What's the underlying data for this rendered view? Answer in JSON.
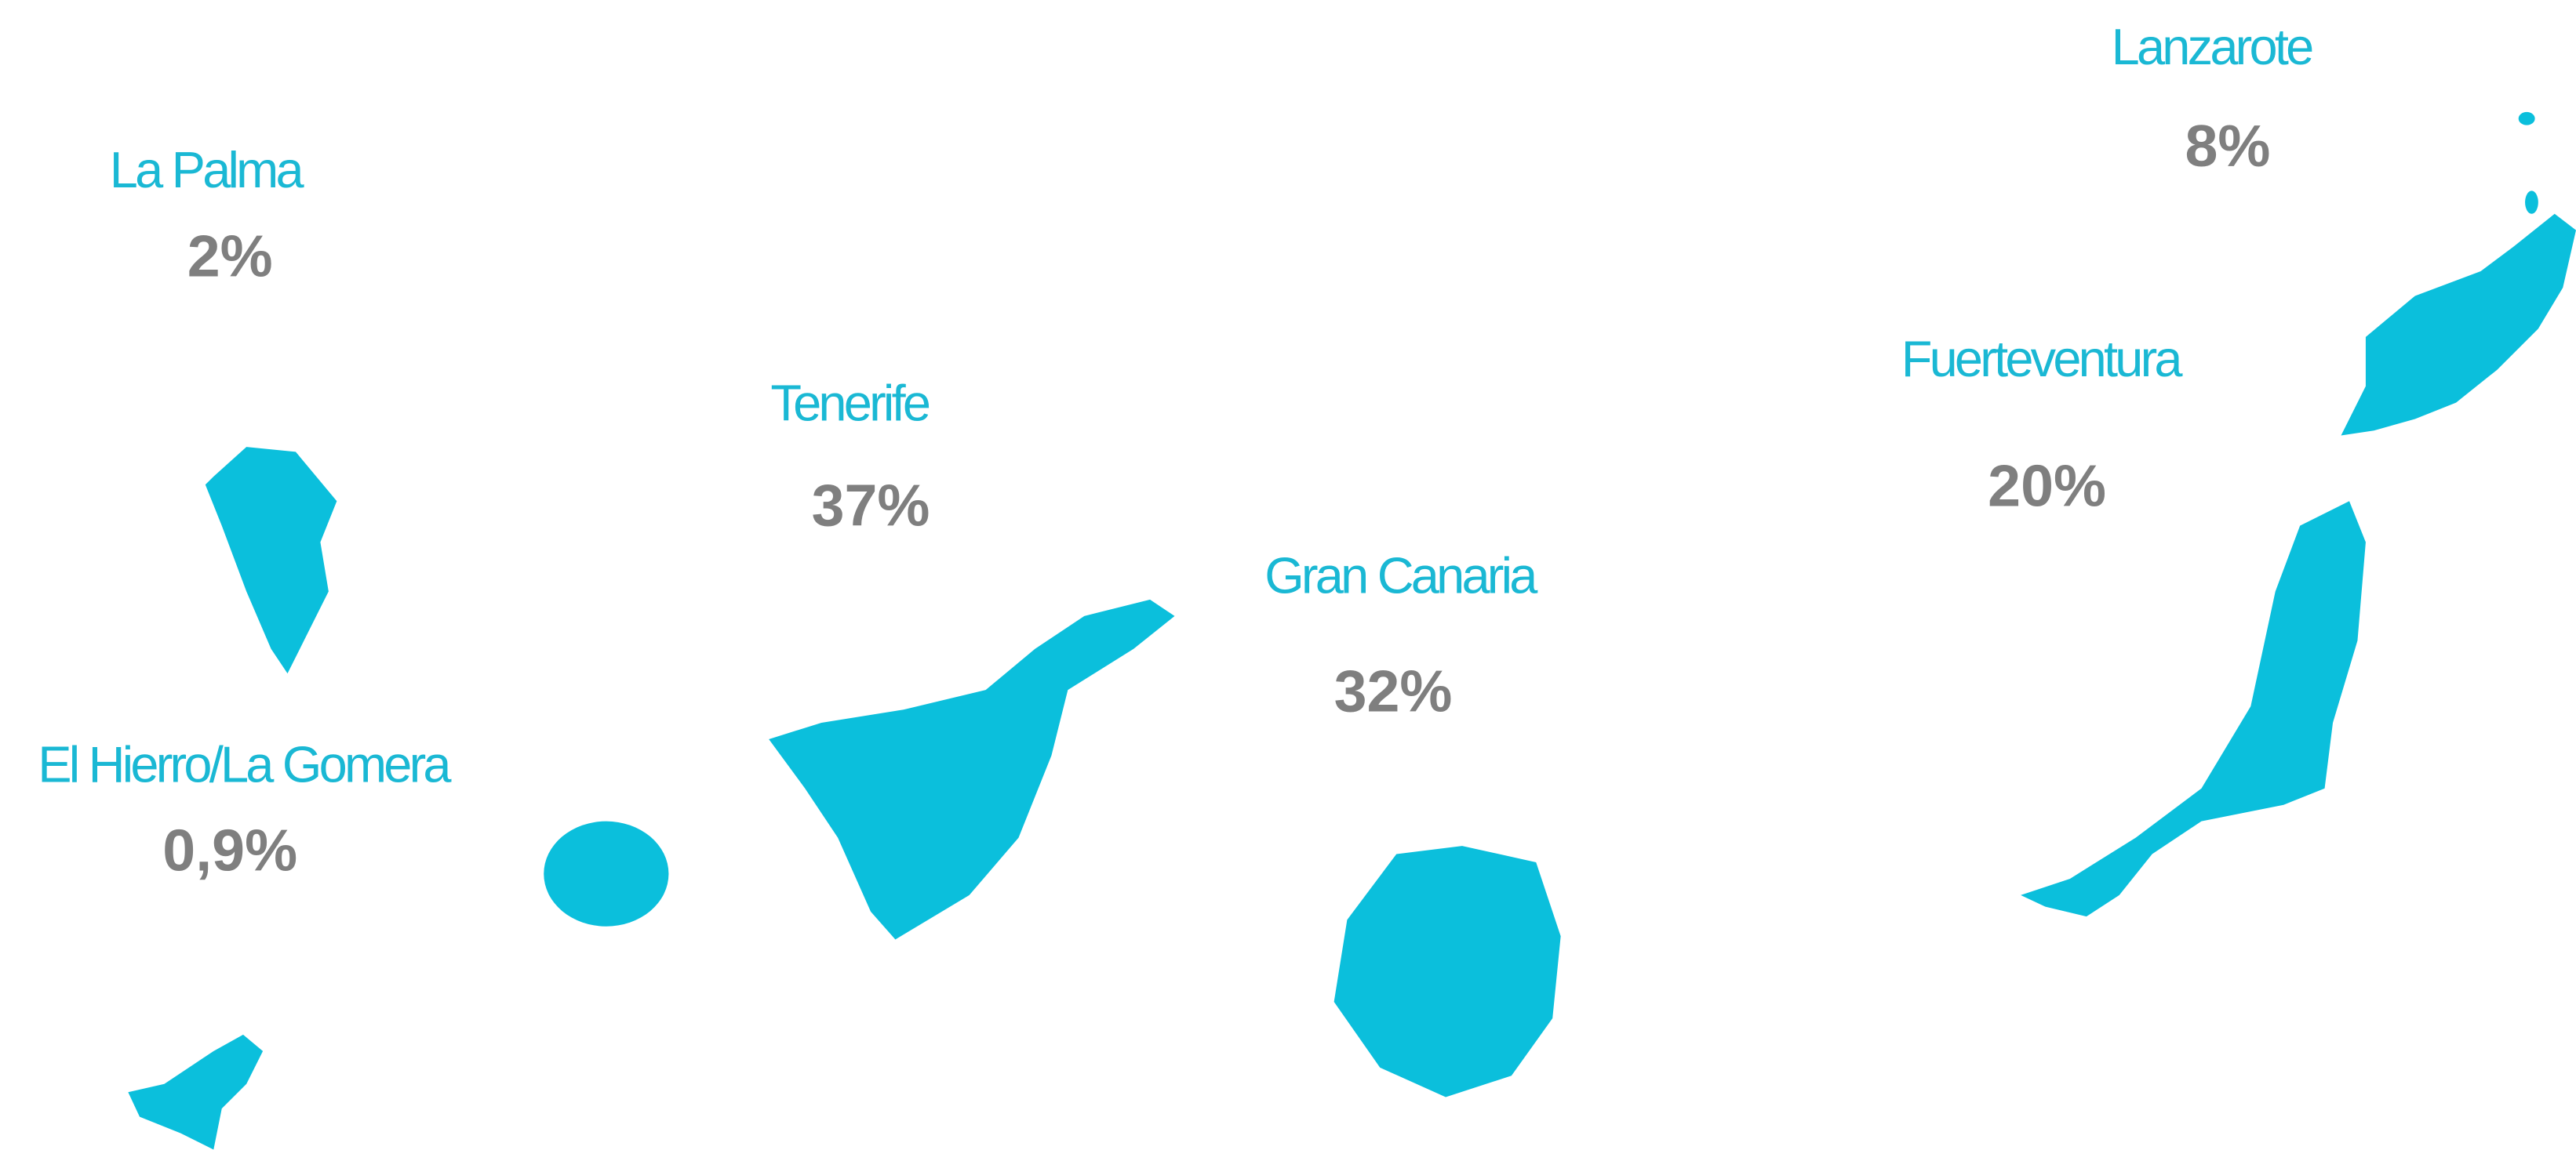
{
  "islands": [
    {
      "name": "La Palma",
      "share": "2%"
    },
    {
      "name": "El Hierro/La Gomera",
      "share": "0,9%"
    },
    {
      "name": "Tenerife",
      "share": "37%"
    },
    {
      "name": "Gran Canaria",
      "share": "32%"
    },
    {
      "name": "Fuerteventura",
      "share": "20%"
    },
    {
      "name": "Lanzarote",
      "share": "8%"
    }
  ]
}
